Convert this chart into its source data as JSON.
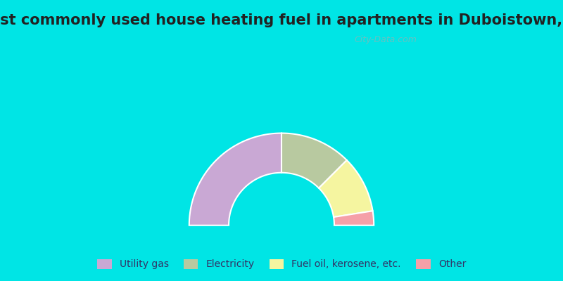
{
  "title": "Most commonly used house heating fuel in apartments in Duboistown, PA",
  "segments": [
    {
      "label": "Utility gas",
      "value": 50,
      "color": "#c9a8d4"
    },
    {
      "label": "Electricity",
      "value": 25,
      "color": "#b8c9a0"
    },
    {
      "label": "Fuel oil, kerosene, etc.",
      "value": 20,
      "color": "#f5f5a0"
    },
    {
      "label": "Other",
      "value": 5,
      "color": "#f5a0a8"
    }
  ],
  "background_color": "#00e5e5",
  "chart_bg_color": "#cde8d0",
  "title_fontsize": 15,
  "legend_fontsize": 10,
  "watermark": "City-Data.com"
}
